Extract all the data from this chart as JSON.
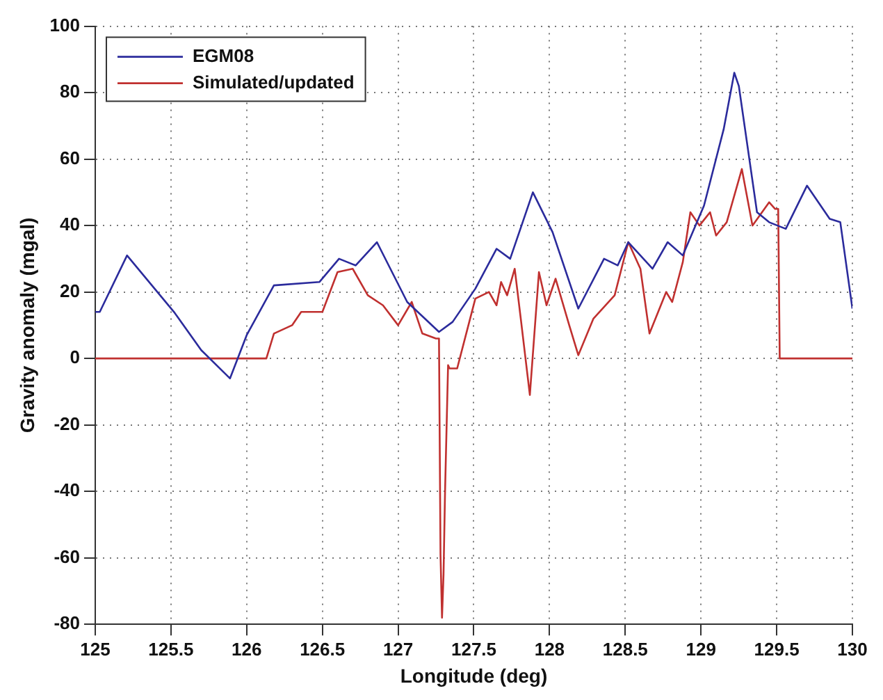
{
  "chart_data": {
    "type": "line",
    "xlabel": "Longitude (deg)",
    "ylabel": "Gravity anomaly (mgal)",
    "xlim": [
      125,
      130
    ],
    "xticks": [
      125,
      125.5,
      126,
      126.5,
      127,
      127.5,
      128,
      128.5,
      129,
      129.5,
      130
    ],
    "ylim": [
      -80,
      100
    ],
    "yticks": [
      -80,
      -60,
      -40,
      -20,
      0,
      20,
      40,
      60,
      80,
      100
    ],
    "grid": true,
    "legend": "top left",
    "line_style": "solid",
    "marker": "none",
    "series": [
      {
        "name": "EGM08",
        "color": "#2b2b9c",
        "x": [
          125,
          125.03,
          125.21,
          125.52,
          125.7,
          125.89,
          126,
          126.18,
          126.48,
          126.61,
          126.72,
          126.86,
          127.06,
          127.27,
          127.36,
          127.51,
          127.65,
          127.74,
          127.89,
          128.02,
          128.19,
          128.36,
          128.45,
          128.52,
          128.68,
          128.78,
          128.88,
          129.02,
          129.15,
          129.22,
          129.25,
          129.37,
          129.45,
          129.56,
          129.7,
          129.85,
          129.92,
          130
        ],
        "values": [
          14,
          14,
          31,
          14,
          2.5,
          -6,
          7,
          22,
          23,
          30,
          28,
          35,
          17,
          8,
          11,
          21,
          33,
          30,
          50,
          38,
          15,
          30,
          28,
          35,
          27,
          35,
          31,
          46,
          69,
          86,
          82,
          44,
          41,
          39,
          52,
          42,
          41,
          15
        ]
      },
      {
        "name": "Simulated/updated",
        "color": "#c0302f",
        "x": [
          125,
          126.13,
          126.18,
          126.3,
          126.36,
          126.5,
          126.6,
          126.7,
          126.8,
          126.9,
          127,
          127.09,
          127.16,
          127.25,
          127.27,
          127.28,
          127.29,
          127.3,
          127.31,
          127.33,
          127.34,
          127.39,
          127.51,
          127.6,
          127.65,
          127.68,
          127.72,
          127.77,
          127.81,
          127.87,
          127.93,
          127.98,
          128.04,
          128.13,
          128.19,
          128.29,
          128.43,
          128.52,
          128.6,
          128.66,
          128.77,
          128.81,
          128.88,
          128.93,
          128.99,
          129.06,
          129.1,
          129.17,
          129.27,
          129.34,
          129.45,
          129.49,
          129.51,
          129.52,
          130
        ],
        "values": [
          0,
          0,
          7.5,
          10,
          14,
          14,
          26,
          27,
          19,
          16,
          10,
          17,
          7.5,
          6,
          6,
          -59,
          -78,
          -65,
          -40,
          -2,
          -3,
          -3,
          18,
          20,
          16,
          23,
          19,
          27,
          12,
          -11,
          26,
          16,
          24,
          10,
          1,
          12,
          19,
          35,
          27,
          7.5,
          20,
          17,
          29,
          44,
          40,
          44,
          37,
          41,
          57,
          40,
          47,
          45,
          45,
          0,
          0
        ]
      }
    ]
  }
}
